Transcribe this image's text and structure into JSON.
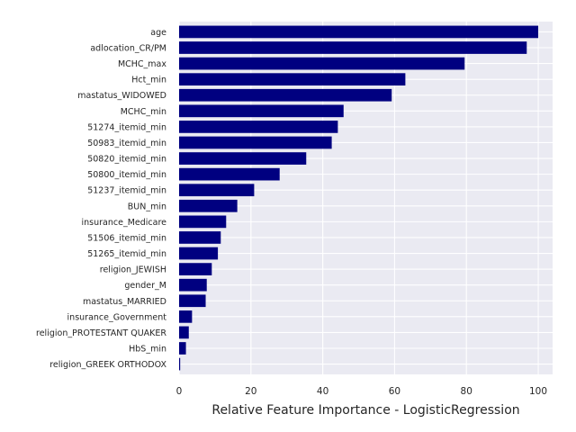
{
  "chart_data": {
    "type": "bar",
    "orientation": "horizontal",
    "title": "",
    "xlabel": "Relative Feature Importance - LogisticRegression",
    "ylabel": "",
    "xlim": [
      0,
      104
    ],
    "xticks": [
      0,
      20,
      40,
      60,
      80,
      100
    ],
    "grid": true,
    "colors": {
      "bar": "#000080",
      "plot_bg": "#EAEAF2",
      "grid": "#FFFFFF",
      "text": "#262626"
    },
    "categories": [
      "age",
      "adlocation_CR/PM",
      "MCHC_max",
      "Hct_min",
      "mastatus_WIDOWED",
      "MCHC_min",
      "51274_itemid_min",
      "50983_itemid_min",
      "50820_itemid_min",
      "50800_itemid_min",
      "51237_itemid_min",
      "BUN_min",
      "insurance_Medicare",
      "51506_itemid_min",
      "51265_itemid_min",
      "religion_JEWISH",
      "gender_M",
      "mastatus_MARRIED",
      "insurance_Government",
      "religion_PROTESTANT QUAKER",
      "HbS_min",
      "religion_GREEK ORTHODOX"
    ],
    "values": [
      100,
      96.8,
      79.5,
      63,
      59.2,
      45.8,
      44.2,
      42.5,
      35.4,
      28,
      20.9,
      16.2,
      13.1,
      11.6,
      10.8,
      9.1,
      7.7,
      7.4,
      3.6,
      2.7,
      1.9,
      0.3
    ]
  }
}
